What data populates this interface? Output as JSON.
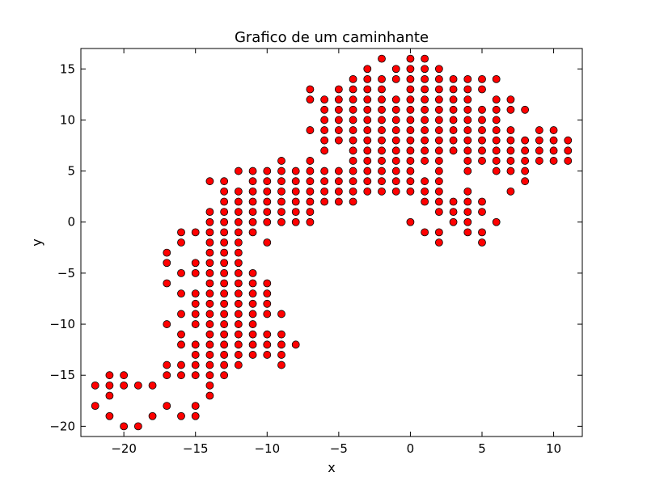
{
  "chart_data": {
    "type": "scatter",
    "title": "Grafico de um caminhante",
    "xlabel": "x",
    "ylabel": "y",
    "xlim": [
      -23,
      12
    ],
    "ylim": [
      -21,
      17
    ],
    "xticks": [
      -20,
      -15,
      -10,
      -5,
      0,
      5,
      10
    ],
    "yticks": [
      -20,
      -15,
      -10,
      -5,
      0,
      5,
      10,
      15
    ],
    "xtick_labels": [
      "−20",
      "−15",
      "−10",
      "−5",
      "0",
      "5",
      "10"
    ],
    "ytick_labels": [
      "−20",
      "−15",
      "−10",
      "−5",
      "0",
      "5",
      "10",
      "15"
    ],
    "marker_color": "#ff0000",
    "marker_edge": "#000000",
    "grid": false,
    "points": [
      [
        -22,
        -16
      ],
      [
        -22,
        -18
      ],
      [
        -21,
        -15
      ],
      [
        -21,
        -16
      ],
      [
        -21,
        -17
      ],
      [
        -21,
        -19
      ],
      [
        -20,
        -15
      ],
      [
        -20,
        -16
      ],
      [
        -20,
        -20
      ],
      [
        -19,
        -16
      ],
      [
        -19,
        -20
      ],
      [
        -18,
        -16
      ],
      [
        -18,
        -19
      ],
      [
        -17,
        -3
      ],
      [
        -17,
        -4
      ],
      [
        -17,
        -6
      ],
      [
        -17,
        -10
      ],
      [
        -17,
        -14
      ],
      [
        -17,
        -15
      ],
      [
        -17,
        -18
      ],
      [
        -16,
        -1
      ],
      [
        -16,
        -2
      ],
      [
        -16,
        -5
      ],
      [
        -16,
        -7
      ],
      [
        -16,
        -9
      ],
      [
        -16,
        -11
      ],
      [
        -16,
        -12
      ],
      [
        -16,
        -14
      ],
      [
        -16,
        -15
      ],
      [
        -16,
        -19
      ],
      [
        -15,
        -1
      ],
      [
        -15,
        -4
      ],
      [
        -15,
        -5
      ],
      [
        -15,
        -7
      ],
      [
        -15,
        -8
      ],
      [
        -15,
        -9
      ],
      [
        -15,
        -10
      ],
      [
        -15,
        -12
      ],
      [
        -15,
        -13
      ],
      [
        -15,
        -14
      ],
      [
        -15,
        -15
      ],
      [
        -15,
        -18
      ],
      [
        -15,
        -19
      ],
      [
        -14,
        4
      ],
      [
        -14,
        1
      ],
      [
        -14,
        0
      ],
      [
        -14,
        -1
      ],
      [
        -14,
        -2
      ],
      [
        -14,
        -3
      ],
      [
        -14,
        -4
      ],
      [
        -14,
        -5
      ],
      [
        -14,
        -6
      ],
      [
        -14,
        -7
      ],
      [
        -14,
        -8
      ],
      [
        -14,
        -9
      ],
      [
        -14,
        -10
      ],
      [
        -14,
        -11
      ],
      [
        -14,
        -12
      ],
      [
        -14,
        -13
      ],
      [
        -14,
        -14
      ],
      [
        -14,
        -15
      ],
      [
        -14,
        -16
      ],
      [
        -14,
        -17
      ],
      [
        -13,
        4
      ],
      [
        -13,
        3
      ],
      [
        -13,
        2
      ],
      [
        -13,
        1
      ],
      [
        -13,
        0
      ],
      [
        -13,
        -1
      ],
      [
        -13,
        -2
      ],
      [
        -13,
        -3
      ],
      [
        -13,
        -4
      ],
      [
        -13,
        -5
      ],
      [
        -13,
        -6
      ],
      [
        -13,
        -7
      ],
      [
        -13,
        -8
      ],
      [
        -13,
        -9
      ],
      [
        -13,
        -10
      ],
      [
        -13,
        -11
      ],
      [
        -13,
        -12
      ],
      [
        -13,
        -13
      ],
      [
        -13,
        -14
      ],
      [
        -13,
        -15
      ],
      [
        -12,
        5
      ],
      [
        -12,
        3
      ],
      [
        -12,
        2
      ],
      [
        -12,
        1
      ],
      [
        -12,
        0
      ],
      [
        -12,
        -1
      ],
      [
        -12,
        -2
      ],
      [
        -12,
        -3
      ],
      [
        -12,
        -4
      ],
      [
        -12,
        -5
      ],
      [
        -12,
        -6
      ],
      [
        -12,
        -7
      ],
      [
        -12,
        -8
      ],
      [
        -12,
        -9
      ],
      [
        -12,
        -10
      ],
      [
        -12,
        -11
      ],
      [
        -12,
        -12
      ],
      [
        -12,
        -13
      ],
      [
        -12,
        -14
      ],
      [
        -11,
        5
      ],
      [
        -11,
        4
      ],
      [
        -11,
        3
      ],
      [
        -11,
        2
      ],
      [
        -11,
        1
      ],
      [
        -11,
        0
      ],
      [
        -11,
        -1
      ],
      [
        -11,
        -5
      ],
      [
        -11,
        -6
      ],
      [
        -11,
        -7
      ],
      [
        -11,
        -8
      ],
      [
        -11,
        -9
      ],
      [
        -11,
        -10
      ],
      [
        -11,
        -11
      ],
      [
        -11,
        -12
      ],
      [
        -11,
        -13
      ],
      [
        -10,
        5
      ],
      [
        -10,
        4
      ],
      [
        -10,
        3
      ],
      [
        -10,
        2
      ],
      [
        -10,
        1
      ],
      [
        -10,
        0
      ],
      [
        -10,
        -2
      ],
      [
        -10,
        -6
      ],
      [
        -10,
        -7
      ],
      [
        -10,
        -8
      ],
      [
        -10,
        -9
      ],
      [
        -10,
        -11
      ],
      [
        -10,
        -12
      ],
      [
        -10,
        -13
      ],
      [
        -9,
        6
      ],
      [
        -9,
        5
      ],
      [
        -9,
        4
      ],
      [
        -9,
        3
      ],
      [
        -9,
        2
      ],
      [
        -9,
        1
      ],
      [
        -9,
        0
      ],
      [
        -9,
        -9
      ],
      [
        -9,
        -11
      ],
      [
        -9,
        -12
      ],
      [
        -9,
        -13
      ],
      [
        -9,
        -14
      ],
      [
        -8,
        5
      ],
      [
        -8,
        4
      ],
      [
        -8,
        3
      ],
      [
        -8,
        2
      ],
      [
        -8,
        1
      ],
      [
        -8,
        0
      ],
      [
        -8,
        -12
      ],
      [
        -7,
        13
      ],
      [
        -7,
        12
      ],
      [
        -7,
        9
      ],
      [
        -7,
        6
      ],
      [
        -7,
        5
      ],
      [
        -7,
        4
      ],
      [
        -7,
        3
      ],
      [
        -7,
        2
      ],
      [
        -7,
        1
      ],
      [
        -7,
        0
      ],
      [
        -6,
        12
      ],
      [
        -6,
        11
      ],
      [
        -6,
        10
      ],
      [
        -6,
        9
      ],
      [
        -6,
        8
      ],
      [
        -6,
        7
      ],
      [
        -6,
        5
      ],
      [
        -6,
        4
      ],
      [
        -6,
        3
      ],
      [
        -6,
        2
      ],
      [
        -5,
        13
      ],
      [
        -5,
        12
      ],
      [
        -5,
        11
      ],
      [
        -5,
        10
      ],
      [
        -5,
        9
      ],
      [
        -5,
        8
      ],
      [
        -5,
        5
      ],
      [
        -5,
        4
      ],
      [
        -5,
        3
      ],
      [
        -5,
        2
      ],
      [
        -4,
        14
      ],
      [
        -4,
        13
      ],
      [
        -4,
        12
      ],
      [
        -4,
        11
      ],
      [
        -4,
        10
      ],
      [
        -4,
        9
      ],
      [
        -4,
        8
      ],
      [
        -4,
        7
      ],
      [
        -4,
        6
      ],
      [
        -4,
        5
      ],
      [
        -4,
        4
      ],
      [
        -4,
        3
      ],
      [
        -4,
        2
      ],
      [
        -3,
        15
      ],
      [
        -3,
        14
      ],
      [
        -3,
        13
      ],
      [
        -3,
        12
      ],
      [
        -3,
        11
      ],
      [
        -3,
        10
      ],
      [
        -3,
        9
      ],
      [
        -3,
        8
      ],
      [
        -3,
        7
      ],
      [
        -3,
        6
      ],
      [
        -3,
        5
      ],
      [
        -3,
        4
      ],
      [
        -3,
        3
      ],
      [
        -2,
        16
      ],
      [
        -2,
        14
      ],
      [
        -2,
        13
      ],
      [
        -2,
        12
      ],
      [
        -2,
        11
      ],
      [
        -2,
        10
      ],
      [
        -2,
        9
      ],
      [
        -2,
        8
      ],
      [
        -2,
        7
      ],
      [
        -2,
        6
      ],
      [
        -2,
        5
      ],
      [
        -2,
        4
      ],
      [
        -2,
        3
      ],
      [
        -1,
        15
      ],
      [
        -1,
        14
      ],
      [
        -1,
        12
      ],
      [
        -1,
        11
      ],
      [
        -1,
        10
      ],
      [
        -1,
        9
      ],
      [
        -1,
        8
      ],
      [
        -1,
        7
      ],
      [
        -1,
        6
      ],
      [
        -1,
        5
      ],
      [
        -1,
        4
      ],
      [
        -1,
        3
      ],
      [
        0,
        16
      ],
      [
        0,
        15
      ],
      [
        0,
        14
      ],
      [
        0,
        13
      ],
      [
        0,
        12
      ],
      [
        0,
        11
      ],
      [
        0,
        10
      ],
      [
        0,
        9
      ],
      [
        0,
        8
      ],
      [
        0,
        7
      ],
      [
        0,
        6
      ],
      [
        0,
        5
      ],
      [
        0,
        4
      ],
      [
        0,
        3
      ],
      [
        0,
        0
      ],
      [
        1,
        16
      ],
      [
        1,
        15
      ],
      [
        1,
        14
      ],
      [
        1,
        13
      ],
      [
        1,
        12
      ],
      [
        1,
        11
      ],
      [
        1,
        10
      ],
      [
        1,
        9
      ],
      [
        1,
        8
      ],
      [
        1,
        7
      ],
      [
        1,
        6
      ],
      [
        1,
        4
      ],
      [
        1,
        3
      ],
      [
        1,
        2
      ],
      [
        1,
        -1
      ],
      [
        2,
        15
      ],
      [
        2,
        14
      ],
      [
        2,
        13
      ],
      [
        2,
        12
      ],
      [
        2,
        11
      ],
      [
        2,
        10
      ],
      [
        2,
        9
      ],
      [
        2,
        8
      ],
      [
        2,
        7
      ],
      [
        2,
        6
      ],
      [
        2,
        5
      ],
      [
        2,
        4
      ],
      [
        2,
        3
      ],
      [
        2,
        2
      ],
      [
        2,
        1
      ],
      [
        2,
        -1
      ],
      [
        2,
        -2
      ],
      [
        3,
        14
      ],
      [
        3,
        13
      ],
      [
        3,
        12
      ],
      [
        3,
        11
      ],
      [
        3,
        10
      ],
      [
        3,
        9
      ],
      [
        3,
        8
      ],
      [
        3,
        7
      ],
      [
        3,
        2
      ],
      [
        3,
        1
      ],
      [
        3,
        0
      ],
      [
        4,
        14
      ],
      [
        4,
        13
      ],
      [
        4,
        12
      ],
      [
        4,
        11
      ],
      [
        4,
        10
      ],
      [
        4,
        9
      ],
      [
        4,
        8
      ],
      [
        4,
        7
      ],
      [
        4,
        6
      ],
      [
        4,
        5
      ],
      [
        4,
        3
      ],
      [
        4,
        2
      ],
      [
        4,
        1
      ],
      [
        4,
        0
      ],
      [
        4,
        -1
      ],
      [
        5,
        14
      ],
      [
        5,
        13
      ],
      [
        5,
        11
      ],
      [
        5,
        10
      ],
      [
        5,
        9
      ],
      [
        5,
        8
      ],
      [
        5,
        7
      ],
      [
        5,
        6
      ],
      [
        5,
        2
      ],
      [
        5,
        1
      ],
      [
        5,
        -1
      ],
      [
        5,
        -2
      ],
      [
        6,
        14
      ],
      [
        6,
        12
      ],
      [
        6,
        11
      ],
      [
        6,
        10
      ],
      [
        6,
        9
      ],
      [
        6,
        8
      ],
      [
        6,
        7
      ],
      [
        6,
        6
      ],
      [
        6,
        5
      ],
      [
        6,
        0
      ],
      [
        7,
        12
      ],
      [
        7,
        11
      ],
      [
        7,
        9
      ],
      [
        7,
        8
      ],
      [
        7,
        7
      ],
      [
        7,
        6
      ],
      [
        7,
        5
      ],
      [
        7,
        3
      ],
      [
        8,
        11
      ],
      [
        8,
        8
      ],
      [
        8,
        7
      ],
      [
        8,
        6
      ],
      [
        8,
        5
      ],
      [
        8,
        4
      ],
      [
        9,
        9
      ],
      [
        9,
        8
      ],
      [
        9,
        7
      ],
      [
        9,
        6
      ],
      [
        10,
        9
      ],
      [
        10,
        8
      ],
      [
        10,
        7
      ],
      [
        10,
        6
      ],
      [
        11,
        8
      ],
      [
        11,
        7
      ],
      [
        11,
        6
      ]
    ]
  }
}
